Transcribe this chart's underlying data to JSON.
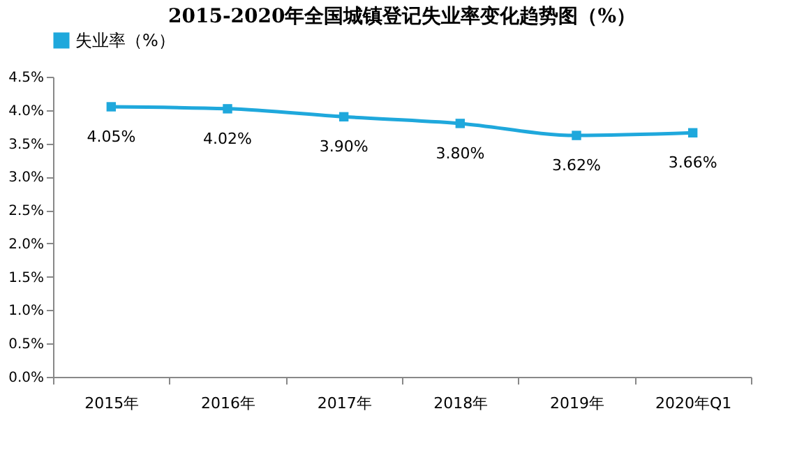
{
  "chart_data": {
    "type": "line",
    "title": "2015-2020年全国城镇登记失业率变化趋势图（%）",
    "categories": [
      "2015年",
      "2016年",
      "2017年",
      "2018年",
      "2019年",
      "2020年Q1"
    ],
    "series": [
      {
        "name": "失业率（%）",
        "color": "#1fa8dc",
        "values": [
          4.05,
          4.02,
          3.9,
          3.8,
          3.62,
          3.66
        ],
        "value_labels": [
          "4.05%",
          "4.02%",
          "3.90%",
          "3.80%",
          "3.62%",
          "3.66%"
        ]
      }
    ],
    "ylim": [
      0,
      4.5
    ],
    "yticks": [
      {
        "value": 0,
        "label": "0.0%"
      },
      {
        "value": 0.5,
        "label": "0.5%"
      },
      {
        "value": 1,
        "label": "1.0%"
      },
      {
        "value": 1.5,
        "label": "1.5%"
      },
      {
        "value": 2,
        "label": "2.0%"
      },
      {
        "value": 2.5,
        "label": "2.5%"
      },
      {
        "value": 3,
        "label": "3.0%"
      },
      {
        "value": 3.5,
        "label": "3.5%"
      },
      {
        "value": 4,
        "label": "4.0%"
      },
      {
        "value": 4.5,
        "label": "4.5%"
      }
    ],
    "marker": "square",
    "line_style": "solid",
    "grid": false,
    "legend": "top"
  }
}
